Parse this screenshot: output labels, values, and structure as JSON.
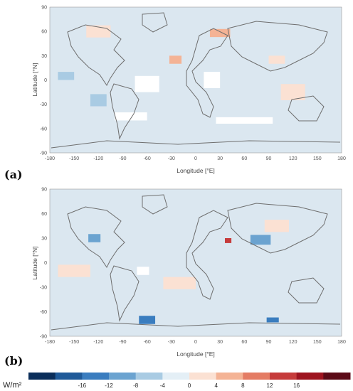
{
  "panels": [
    {
      "letter": "(a)",
      "xlabel": "Longitude [°E]",
      "ylabel": "Latitude [°N]",
      "xticks": [
        "-180",
        "-150",
        "-120",
        "-90",
        "-60",
        "-30",
        "0",
        "30",
        "60",
        "90",
        "120",
        "150",
        "180"
      ],
      "yticks": [
        "90",
        "60",
        "30",
        "0",
        "-30",
        "-60",
        "-90"
      ],
      "map_background": "#dbe7f0",
      "patches": [
        {
          "lon": -60,
          "lat": -5,
          "w": 30,
          "h": 20,
          "level": "white"
        },
        {
          "lon": -80,
          "lat": -45,
          "w": 40,
          "h": 10,
          "level": "white"
        },
        {
          "lon": 60,
          "lat": -50,
          "w": 70,
          "h": 8,
          "level": "white"
        },
        {
          "lon": 20,
          "lat": 0,
          "w": 20,
          "h": 20,
          "level": "white"
        },
        {
          "lon": -25,
          "lat": 25,
          "w": 15,
          "h": 10,
          "level": "warm2"
        },
        {
          "lon": 30,
          "lat": 58,
          "w": 25,
          "h": 10,
          "level": "warm2"
        },
        {
          "lon": -160,
          "lat": 5,
          "w": 20,
          "h": 10,
          "level": "cool1"
        },
        {
          "lon": -120,
          "lat": -25,
          "w": 20,
          "h": 15,
          "level": "cool1"
        },
        {
          "lon": 100,
          "lat": 25,
          "w": 20,
          "h": 10,
          "level": "warm1"
        },
        {
          "lon": -120,
          "lat": 60,
          "w": 30,
          "h": 15,
          "level": "warm1"
        },
        {
          "lon": 120,
          "lat": -15,
          "w": 30,
          "h": 20,
          "level": "warm1"
        }
      ]
    },
    {
      "letter": "(b)",
      "xlabel": "Longitude [°E]",
      "ylabel": "Latitude [°N]",
      "xticks": [
        "-180",
        "-150",
        "-120",
        "-90",
        "-60",
        "-30",
        "0",
        "30",
        "60",
        "90",
        "120",
        "150",
        "180"
      ],
      "yticks": [
        "90",
        "60",
        "30",
        "0",
        "-30",
        "-60",
        "-90"
      ],
      "map_background": "#dbe7f0",
      "patches": [
        {
          "lon": -125,
          "lat": 30,
          "w": 15,
          "h": 10,
          "level": "cool2"
        },
        {
          "lon": 40,
          "lat": 27,
          "w": 8,
          "h": 6,
          "level": "warm4"
        },
        {
          "lon": 80,
          "lat": 28,
          "w": 25,
          "h": 12,
          "level": "cool2"
        },
        {
          "lon": -60,
          "lat": -70,
          "w": 20,
          "h": 10,
          "level": "cool3"
        },
        {
          "lon": 95,
          "lat": -70,
          "w": 15,
          "h": 6,
          "level": "cool3"
        },
        {
          "lon": -150,
          "lat": -10,
          "w": 40,
          "h": 15,
          "level": "warm1"
        },
        {
          "lon": -20,
          "lat": -25,
          "w": 40,
          "h": 15,
          "level": "warm1"
        },
        {
          "lon": 100,
          "lat": 45,
          "w": 30,
          "h": 15,
          "level": "warm1"
        },
        {
          "lon": -65,
          "lat": -10,
          "w": 15,
          "h": 10,
          "level": "white"
        }
      ]
    }
  ],
  "colorbar": {
    "unit": "W/m²",
    "ticks": [
      "-16",
      "-12",
      "-8",
      "-4",
      "0",
      "4",
      "8",
      "12",
      "16"
    ],
    "colors": [
      "#0b2e5a",
      "#1f5a99",
      "#3a7dbf",
      "#6ba3d0",
      "#a9cbe3",
      "#e4eff6",
      "#fbe1d3",
      "#f4b395",
      "#e47c64",
      "#c63b3b",
      "#9e1420",
      "#5c0a17"
    ]
  },
  "level_colors": {
    "white": "#ffffff",
    "cool1": "#a9cbe3",
    "cool2": "#6ba3d0",
    "cool3": "#3a7dbf",
    "warm1": "#fbe1d3",
    "warm2": "#f4b395",
    "warm4": "#c63b3b"
  }
}
